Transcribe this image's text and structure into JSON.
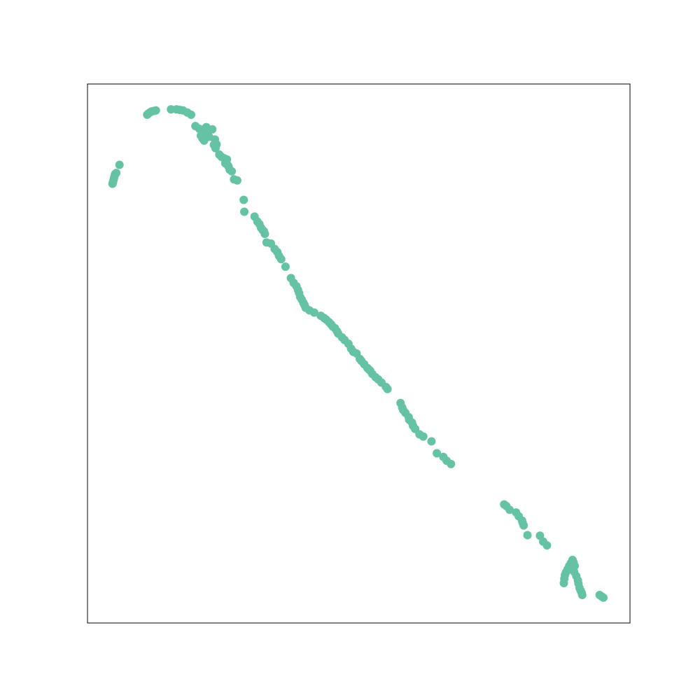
{
  "chart_data": {
    "type": "scatter",
    "xlim": [
      0,
      1
    ],
    "ylim": [
      0,
      1
    ],
    "grid": false,
    "axes_ticks": false,
    "marker_color": "#66c2a5",
    "x": [
      0.046,
      0.047,
      0.048,
      0.049,
      0.05,
      0.051,
      0.053,
      0.059,
      0.11,
      0.112,
      0.115,
      0.118,
      0.122,
      0.126,
      0.154,
      0.164,
      0.17,
      0.176,
      0.184,
      0.191,
      0.199,
      0.206,
      0.211,
      0.209,
      0.212,
      0.215,
      0.219,
      0.221,
      0.222,
      0.224,
      0.23,
      0.233,
      0.235,
      0.236,
      0.238,
      0.243,
      0.247,
      0.252,
      0.254,
      0.256,
      0.257,
      0.258,
      0.26,
      0.262,
      0.266,
      0.27,
      0.276,
      0.288,
      0.289,
      0.308,
      0.313,
      0.317,
      0.32,
      0.323,
      0.325,
      0.327,
      0.33,
      0.338,
      0.345,
      0.35,
      0.353,
      0.357,
      0.365,
      0.375,
      0.38,
      0.385,
      0.388,
      0.39,
      0.392,
      0.395,
      0.398,
      0.4,
      0.402,
      0.409,
      0.418,
      0.43,
      0.436,
      0.44,
      0.445,
      0.449,
      0.452,
      0.456,
      0.46,
      0.462,
      0.469,
      0.474,
      0.481,
      0.486,
      0.49,
      0.496,
      0.502,
      0.505,
      0.51,
      0.516,
      0.519,
      0.521,
      0.525,
      0.531,
      0.536,
      0.542,
      0.55,
      0.553,
      0.577,
      0.58,
      0.582,
      0.586,
      0.592,
      0.593,
      0.598,
      0.6,
      0.604,
      0.612,
      0.619,
      0.634,
      0.644,
      0.656,
      0.662,
      0.67,
      0.768,
      0.772,
      0.778,
      0.79,
      0.795,
      0.801,
      0.802,
      0.804,
      0.811,
      0.834,
      0.84,
      0.847,
      0.878,
      0.879,
      0.88,
      0.882,
      0.885,
      0.888,
      0.891,
      0.893,
      0.894,
      0.896,
      0.898,
      0.897,
      0.901,
      0.904,
      0.905,
      0.907,
      0.909,
      0.911,
      0.912,
      0.944,
      0.948,
      0.951
    ],
    "y": [
      0.815,
      0.818,
      0.822,
      0.826,
      0.83,
      0.833,
      0.835,
      0.85,
      0.943,
      0.945,
      0.947,
      0.949,
      0.95,
      0.951,
      0.953,
      0.953,
      0.952,
      0.951,
      0.947,
      0.943,
      0.922,
      0.917,
      0.912,
      0.904,
      0.899,
      0.895,
      0.92,
      0.905,
      0.909,
      0.902,
      0.916,
      0.887,
      0.897,
      0.881,
      0.888,
      0.869,
      0.865,
      0.862,
      0.853,
      0.858,
      0.86,
      0.85,
      0.847,
      0.841,
      0.838,
      0.823,
      0.821,
      0.785,
      0.763,
      0.754,
      0.745,
      0.74,
      0.733,
      0.729,
      0.727,
      0.722,
      0.706,
      0.704,
      0.694,
      0.688,
      0.681,
      0.675,
      0.661,
      0.64,
      0.631,
      0.625,
      0.618,
      0.612,
      0.605,
      0.6,
      0.594,
      0.59,
      0.585,
      0.58,
      0.576,
      0.57,
      0.566,
      0.563,
      0.558,
      0.554,
      0.55,
      0.547,
      0.541,
      0.537,
      0.53,
      0.525,
      0.518,
      0.509,
      0.503,
      0.5,
      0.49,
      0.486,
      0.48,
      0.473,
      0.47,
      0.468,
      0.462,
      0.456,
      0.452,
      0.446,
      0.438,
      0.434,
      0.408,
      0.4,
      0.395,
      0.39,
      0.382,
      0.377,
      0.372,
      0.366,
      0.36,
      0.35,
      0.346,
      0.337,
      0.315,
      0.308,
      0.301,
      0.295,
      0.22,
      0.217,
      0.21,
      0.205,
      0.198,
      0.19,
      0.186,
      0.181,
      0.163,
      0.162,
      0.151,
      0.144,
      0.074,
      0.082,
      0.089,
      0.094,
      0.1,
      0.106,
      0.111,
      0.113,
      0.117,
      0.112,
      0.106,
      0.095,
      0.087,
      0.079,
      0.073,
      0.065,
      0.06,
      0.056,
      0.052,
      0.052,
      0.049,
      0.047
    ]
  }
}
